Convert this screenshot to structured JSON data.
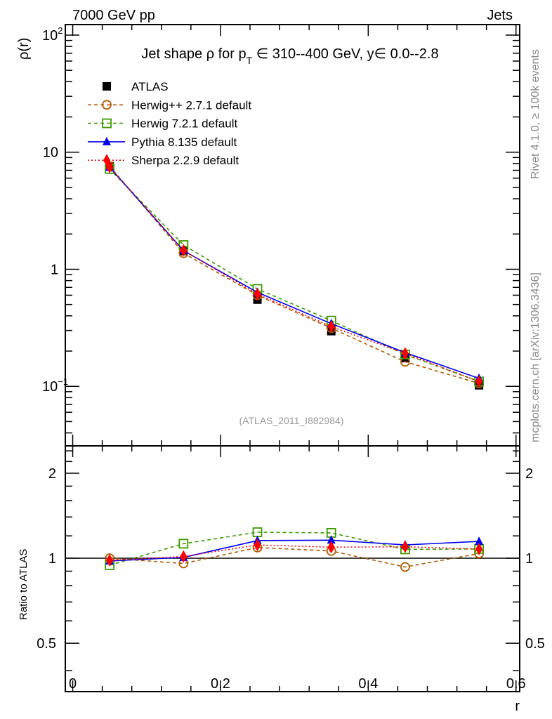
{
  "header": {
    "left": "7000 GeV pp",
    "right": "Jets"
  },
  "side": {
    "top": "Rivet 4.1.0, ≥ 100k events",
    "bottom": "mcplots.cern.ch [arXiv:1306.3436]"
  },
  "analysis_tag": "(ATLAS_2011_I882984)",
  "chart_data": {
    "type": "line",
    "title_parts": [
      "Jet shape ρ for p",
      "T",
      " ∈ 310--400 GeV, y∈ 0.0--2.8"
    ],
    "xlabel": "r",
    "ylabel": "ρ(r)",
    "ratio_ylabel": "Ratio to ATLAS",
    "xlim": [
      -0.01,
      0.605
    ],
    "ylim": [
      0.031,
      123
    ],
    "yscale": "log",
    "ratio_ylim": [
      0.337,
      2.5
    ],
    "ratio_yscale": "log",
    "x_ticks": [
      "0",
      "0.2",
      "0.4",
      "0.6"
    ],
    "x_tick_values": [
      0,
      0.2,
      0.4,
      0.6
    ],
    "y_ticks": [
      {
        "base": "10",
        "exp": "2",
        "v": 100
      },
      {
        "base": "10",
        "exp": "",
        "v": 10
      },
      {
        "base": "1",
        "exp": "",
        "v": 1
      },
      {
        "base": "10",
        "exp": "−1",
        "v": 0.1
      }
    ],
    "ratio_ticks": [
      {
        "label": "2",
        "v": 2
      },
      {
        "label": "1",
        "v": 1
      },
      {
        "label": "0.5",
        "v": 0.5
      }
    ],
    "x": [
      0.05,
      0.15,
      0.25,
      0.35,
      0.45,
      0.55
    ],
    "legend_position": "top-left",
    "series": [
      {
        "name": "ATLAS",
        "values": [
          7.6,
          1.43,
          0.55,
          0.296,
          0.174,
          0.102
        ],
        "color": "#000000",
        "marker": "square-filled",
        "dash": "none"
      },
      {
        "name": "Herwig++ 2.7.1 default",
        "values": [
          7.6,
          1.37,
          0.6,
          0.314,
          0.162,
          0.106
        ],
        "color": "#b35900",
        "marker": "circle-open",
        "dash": "5,4"
      },
      {
        "name": "Herwig 7.2.1 default",
        "values": [
          7.18,
          1.61,
          0.68,
          0.364,
          0.187,
          0.11
        ],
        "color": "#3c9a00",
        "marker": "square-open",
        "dash": "5,4"
      },
      {
        "name": "Pythia 8.135 default",
        "values": [
          7.43,
          1.44,
          0.635,
          0.343,
          0.194,
          0.117
        ],
        "color": "#0000ee",
        "marker": "triangle-filled",
        "dash": "none"
      },
      {
        "name": "Sherpa 2.2.9 default",
        "values": [
          7.47,
          1.45,
          0.613,
          0.324,
          0.191,
          0.11
        ],
        "color": "#ff0000",
        "marker": "diamond-filled",
        "dash": "2,3"
      }
    ]
  }
}
